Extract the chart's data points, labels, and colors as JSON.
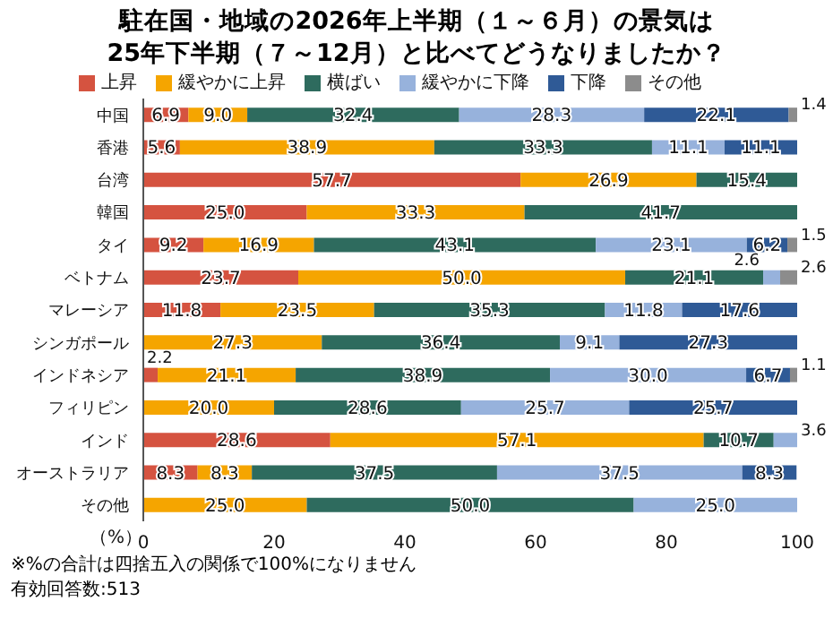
{
  "chart_data": {
    "type": "bar",
    "orientation": "horizontal",
    "stacked": true,
    "title": "駐在国・地域の2026年上半期（１～６月）の景気は\n25年下半期（７～12月）と比べてどうなりましたか？",
    "xlabel": "（%）",
    "categories": [
      "中国",
      "香港",
      "台湾",
      "韓国",
      "タイ",
      "ベトナム",
      "マレーシア",
      "シンガポール",
      "インドネシア",
      "フィリピン",
      "インド",
      "オーストラリア",
      "その他"
    ],
    "series": [
      {
        "name": "上昇",
        "color": "#d55340",
        "values": [
          6.9,
          5.6,
          57.7,
          25.0,
          9.2,
          23.7,
          11.8,
          null,
          2.2,
          null,
          28.6,
          8.3,
          null
        ],
        "value_labels": [
          "6.9",
          "5.6",
          "57.7",
          "25.0",
          "9.2",
          "23.7",
          "11.8",
          null,
          "2.2",
          null,
          "28.6",
          "8.3",
          null
        ]
      },
      {
        "name": "緩やかに上昇",
        "color": "#f5a500",
        "values": [
          9.0,
          38.9,
          26.9,
          33.3,
          16.9,
          50.0,
          23.5,
          27.3,
          21.1,
          20.0,
          57.1,
          8.3,
          25.0
        ],
        "value_labels": [
          "9.0",
          "38.9",
          "26.9",
          "33.3",
          "16.9",
          "50.0",
          "23.5",
          "27.3",
          "21.1",
          "20.0",
          "57.1",
          "8.3",
          "25.0"
        ]
      },
      {
        "name": "横ばい",
        "color": "#2e6b5e",
        "values": [
          32.4,
          33.3,
          15.4,
          41.7,
          43.1,
          21.1,
          35.3,
          36.4,
          38.9,
          28.6,
          10.7,
          37.5,
          50.0
        ],
        "value_labels": [
          "32.4",
          "33.3",
          "15.4",
          "41.7",
          "43.1",
          "21.1",
          "35.3",
          "36.4",
          "38.9",
          "28.6",
          "10.7",
          "37.5",
          "50.0"
        ]
      },
      {
        "name": "緩やかに下降",
        "color": "#97b2dc",
        "values": [
          28.3,
          11.1,
          null,
          null,
          23.1,
          2.6,
          11.8,
          9.1,
          30.0,
          25.7,
          3.6,
          37.5,
          25.0
        ],
        "value_labels": [
          "28.3",
          "11.1",
          null,
          null,
          "23.1",
          "2.6",
          "11.8",
          "9.1",
          "30.0",
          "25.7",
          "3.6",
          "37.5",
          "25.0"
        ]
      },
      {
        "name": "下降",
        "color": "#2f5a96",
        "values": [
          22.1,
          11.1,
          null,
          null,
          6.2,
          null,
          17.6,
          27.3,
          6.7,
          25.7,
          null,
          8.3,
          null
        ],
        "value_labels": [
          "22.1",
          "11.1",
          null,
          null,
          "6.2",
          null,
          "17.6",
          "27.3",
          "6.7",
          "25.7",
          null,
          "8.3",
          null
        ]
      },
      {
        "name": "その他",
        "color": "#8c8c8c",
        "values": [
          1.4,
          null,
          null,
          null,
          1.5,
          2.6,
          null,
          null,
          1.1,
          null,
          null,
          null,
          null
        ],
        "value_labels": [
          "1.4",
          null,
          null,
          null,
          "1.5",
          "2.6",
          null,
          null,
          "1.1",
          null,
          null,
          null,
          null
        ]
      }
    ],
    "xlim": [
      0,
      100
    ],
    "xticks": [
      0,
      20,
      40,
      60,
      80,
      100
    ],
    "legend": "top",
    "annotations": [
      "※%の合計は四捨五入の関係で100%になりません",
      "有効回答数:513"
    ]
  }
}
